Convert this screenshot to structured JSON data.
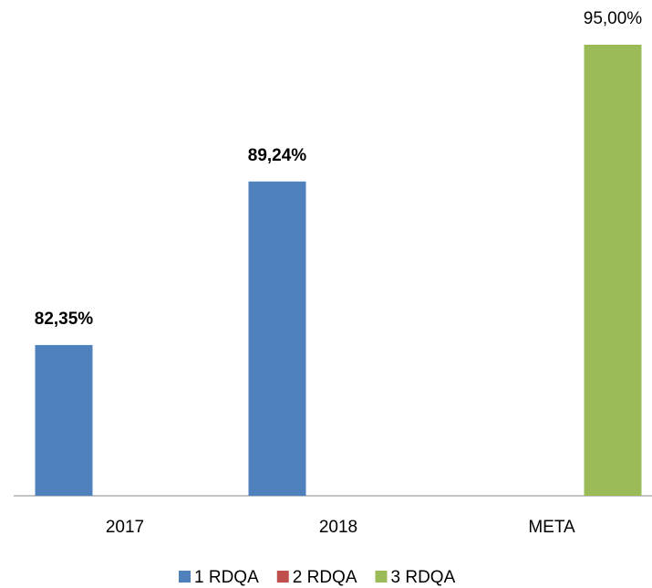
{
  "chart_data": {
    "type": "bar",
    "categories": [
      "2017",
      "2018",
      "META"
    ],
    "series": [
      {
        "name": "1 RDQA",
        "color": "#4f81bd",
        "values": [
          82.35,
          89.24,
          null
        ],
        "value_labels": [
          "82,35%",
          "89,24%",
          null
        ]
      },
      {
        "name": "2 RDQA",
        "color": "#c0504d",
        "values": [
          null,
          null,
          null
        ],
        "value_labels": [
          null,
          null,
          null
        ]
      },
      {
        "name": "3 RDQA",
        "color": "#9bbb59",
        "values": [
          null,
          null,
          95
        ],
        "value_labels": [
          null,
          null,
          "95,00%"
        ]
      }
    ],
    "ylim": [
      76,
      95
    ],
    "grid": false,
    "legend": "bottom"
  }
}
